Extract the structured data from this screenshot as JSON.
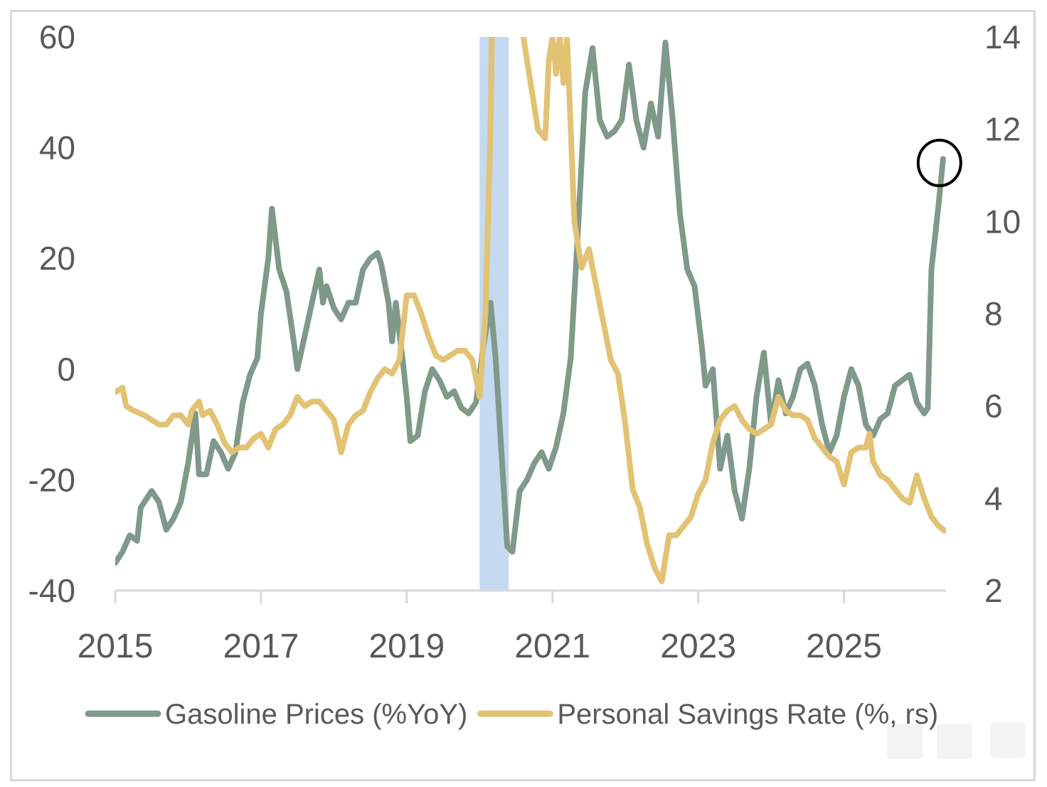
{
  "chart_data": {
    "type": "line",
    "title": "",
    "xlabel": "",
    "ylabel_left": "",
    "ylabel_right": "",
    "x_ticks": [
      "2015",
      "2017",
      "2019",
      "2021",
      "2023",
      "2025"
    ],
    "xlim": [
      2015,
      2026.4
    ],
    "ylim_left": [
      -40,
      60
    ],
    "yticks_left": [
      "60",
      "40",
      "20",
      "0",
      "-20",
      "-40"
    ],
    "ylim_right": [
      2,
      14
    ],
    "yticks_right": [
      "14",
      "12",
      "10",
      "8",
      "6",
      "4",
      "2"
    ],
    "grid": false,
    "legend_position": "bottom",
    "shaded_regions": [
      {
        "start": 2020.0,
        "end": 2020.4,
        "color": "#c5d9f1"
      }
    ],
    "annotations": [
      {
        "type": "circle",
        "x": 2026.33,
        "y": 37.5,
        "axis": "left"
      }
    ],
    "series": [
      {
        "name": "Gasoline Prices (%YoY)",
        "axis": "left",
        "color": "#7f998a",
        "points": [
          [
            2015.0,
            -35
          ],
          [
            2015.1,
            -33
          ],
          [
            2015.2,
            -30
          ],
          [
            2015.3,
            -31
          ],
          [
            2015.35,
            -25
          ],
          [
            2015.5,
            -22
          ],
          [
            2015.6,
            -24
          ],
          [
            2015.7,
            -29
          ],
          [
            2015.8,
            -27
          ],
          [
            2015.9,
            -24
          ],
          [
            2016.0,
            -17
          ],
          [
            2016.1,
            -8
          ],
          [
            2016.15,
            -19
          ],
          [
            2016.25,
            -19
          ],
          [
            2016.35,
            -13
          ],
          [
            2016.45,
            -15
          ],
          [
            2016.55,
            -18
          ],
          [
            2016.65,
            -15
          ],
          [
            2016.75,
            -6
          ],
          [
            2016.85,
            -1
          ],
          [
            2016.95,
            2
          ],
          [
            2017.0,
            10
          ],
          [
            2017.1,
            20
          ],
          [
            2017.15,
            29
          ],
          [
            2017.25,
            18
          ],
          [
            2017.35,
            14
          ],
          [
            2017.45,
            5
          ],
          [
            2017.5,
            0
          ],
          [
            2017.6,
            6
          ],
          [
            2017.7,
            12
          ],
          [
            2017.8,
            18
          ],
          [
            2017.85,
            12
          ],
          [
            2017.9,
            15
          ],
          [
            2018.0,
            11
          ],
          [
            2018.1,
            9
          ],
          [
            2018.2,
            12
          ],
          [
            2018.3,
            12
          ],
          [
            2018.4,
            18
          ],
          [
            2018.5,
            20
          ],
          [
            2018.6,
            21
          ],
          [
            2018.65,
            19
          ],
          [
            2018.75,
            12
          ],
          [
            2018.8,
            5
          ],
          [
            2018.85,
            12
          ],
          [
            2018.95,
            1
          ],
          [
            2019.0,
            -5
          ],
          [
            2019.05,
            -13
          ],
          [
            2019.15,
            -12
          ],
          [
            2019.25,
            -4
          ],
          [
            2019.35,
            0
          ],
          [
            2019.45,
            -2
          ],
          [
            2019.55,
            -5
          ],
          [
            2019.65,
            -4
          ],
          [
            2019.75,
            -7
          ],
          [
            2019.85,
            -8
          ],
          [
            2019.95,
            -6
          ],
          [
            2020.05,
            4
          ],
          [
            2020.15,
            12
          ],
          [
            2020.22,
            2
          ],
          [
            2020.3,
            -15
          ],
          [
            2020.38,
            -32
          ],
          [
            2020.45,
            -33
          ],
          [
            2020.55,
            -22
          ],
          [
            2020.65,
            -20
          ],
          [
            2020.75,
            -17
          ],
          [
            2020.85,
            -15
          ],
          [
            2020.95,
            -18
          ],
          [
            2021.05,
            -14
          ],
          [
            2021.15,
            -8
          ],
          [
            2021.25,
            2
          ],
          [
            2021.35,
            25
          ],
          [
            2021.45,
            50
          ],
          [
            2021.55,
            58
          ],
          [
            2021.65,
            45
          ],
          [
            2021.75,
            42
          ],
          [
            2021.85,
            43
          ],
          [
            2021.95,
            45
          ],
          [
            2022.05,
            55
          ],
          [
            2022.15,
            45
          ],
          [
            2022.25,
            40
          ],
          [
            2022.35,
            48
          ],
          [
            2022.45,
            42
          ],
          [
            2022.55,
            59
          ],
          [
            2022.65,
            45
          ],
          [
            2022.75,
            28
          ],
          [
            2022.85,
            18
          ],
          [
            2022.95,
            15
          ],
          [
            2023.05,
            4
          ],
          [
            2023.1,
            -3
          ],
          [
            2023.2,
            0
          ],
          [
            2023.3,
            -18
          ],
          [
            2023.4,
            -12
          ],
          [
            2023.5,
            -22
          ],
          [
            2023.6,
            -27
          ],
          [
            2023.7,
            -18
          ],
          [
            2023.8,
            -5
          ],
          [
            2023.9,
            3
          ],
          [
            2024.0,
            -10
          ],
          [
            2024.1,
            -2
          ],
          [
            2024.2,
            -8
          ],
          [
            2024.3,
            -5
          ],
          [
            2024.4,
            0
          ],
          [
            2024.5,
            1
          ],
          [
            2024.6,
            -3
          ],
          [
            2024.7,
            -10
          ],
          [
            2024.8,
            -15
          ],
          [
            2024.9,
            -12
          ],
          [
            2025.0,
            -5
          ],
          [
            2025.1,
            0
          ],
          [
            2025.2,
            -3
          ],
          [
            2025.3,
            -10
          ],
          [
            2025.4,
            -12
          ],
          [
            2025.5,
            -9
          ],
          [
            2025.6,
            -8
          ],
          [
            2025.7,
            -3
          ],
          [
            2025.8,
            -2
          ],
          [
            2025.9,
            -1
          ],
          [
            2026.0,
            -6
          ],
          [
            2026.1,
            -8
          ],
          [
            2026.15,
            -7
          ],
          [
            2026.2,
            18
          ],
          [
            2026.3,
            30
          ],
          [
            2026.36,
            38
          ]
        ]
      },
      {
        "name": "Personal Savings Rate (%, rs)",
        "axis": "right",
        "color": "#e2c273",
        "points": [
          [
            2015.0,
            6.3
          ],
          [
            2015.1,
            6.4
          ],
          [
            2015.15,
            6.0
          ],
          [
            2015.25,
            5.9
          ],
          [
            2015.4,
            5.8
          ],
          [
            2015.5,
            5.7
          ],
          [
            2015.6,
            5.6
          ],
          [
            2015.7,
            5.6
          ],
          [
            2015.8,
            5.8
          ],
          [
            2015.9,
            5.8
          ],
          [
            2016.0,
            5.6
          ],
          [
            2016.05,
            5.9
          ],
          [
            2016.15,
            6.1
          ],
          [
            2016.2,
            5.8
          ],
          [
            2016.3,
            5.9
          ],
          [
            2016.4,
            5.6
          ],
          [
            2016.5,
            5.2
          ],
          [
            2016.6,
            5.0
          ],
          [
            2016.7,
            5.1
          ],
          [
            2016.8,
            5.1
          ],
          [
            2016.9,
            5.3
          ],
          [
            2017.0,
            5.4
          ],
          [
            2017.1,
            5.1
          ],
          [
            2017.2,
            5.5
          ],
          [
            2017.3,
            5.6
          ],
          [
            2017.4,
            5.8
          ],
          [
            2017.5,
            6.2
          ],
          [
            2017.6,
            6.0
          ],
          [
            2017.7,
            6.1
          ],
          [
            2017.8,
            6.1
          ],
          [
            2017.9,
            5.9
          ],
          [
            2018.0,
            5.7
          ],
          [
            2018.1,
            5.0
          ],
          [
            2018.2,
            5.6
          ],
          [
            2018.3,
            5.8
          ],
          [
            2018.4,
            5.9
          ],
          [
            2018.5,
            6.3
          ],
          [
            2018.6,
            6.6
          ],
          [
            2018.7,
            6.8
          ],
          [
            2018.8,
            6.7
          ],
          [
            2018.9,
            7.0
          ],
          [
            2019.0,
            8.4
          ],
          [
            2019.1,
            8.4
          ],
          [
            2019.2,
            8.0
          ],
          [
            2019.3,
            7.5
          ],
          [
            2019.4,
            7.1
          ],
          [
            2019.5,
            7.0
          ],
          [
            2019.6,
            7.1
          ],
          [
            2019.7,
            7.2
          ],
          [
            2019.8,
            7.2
          ],
          [
            2019.9,
            7.0
          ],
          [
            2020.0,
            6.2
          ],
          [
            2020.08,
            8.0
          ],
          [
            2020.15,
            12.0
          ],
          [
            2020.22,
            20.0
          ],
          [
            2020.5,
            20.0
          ],
          [
            2020.6,
            14.0
          ],
          [
            2020.7,
            13.0
          ],
          [
            2020.8,
            12.0
          ],
          [
            2020.9,
            11.8
          ],
          [
            2020.95,
            13.5
          ],
          [
            2021.0,
            14.0
          ],
          [
            2021.05,
            13.2
          ],
          [
            2021.1,
            14.0
          ],
          [
            2021.15,
            13.0
          ],
          [
            2021.2,
            14.0
          ],
          [
            2021.25,
            12.0
          ],
          [
            2021.3,
            10.0
          ],
          [
            2021.4,
            9.0
          ],
          [
            2021.5,
            9.4
          ],
          [
            2021.6,
            8.6
          ],
          [
            2021.7,
            7.8
          ],
          [
            2021.8,
            7.0
          ],
          [
            2021.9,
            6.7
          ],
          [
            2022.0,
            5.6
          ],
          [
            2022.1,
            4.2
          ],
          [
            2022.2,
            3.8
          ],
          [
            2022.3,
            3.0
          ],
          [
            2022.4,
            2.5
          ],
          [
            2022.5,
            2.2
          ],
          [
            2022.6,
            3.2
          ],
          [
            2022.7,
            3.2
          ],
          [
            2022.8,
            3.4
          ],
          [
            2022.9,
            3.6
          ],
          [
            2023.0,
            4.1
          ],
          [
            2023.1,
            4.4
          ],
          [
            2023.2,
            5.2
          ],
          [
            2023.3,
            5.7
          ],
          [
            2023.4,
            5.9
          ],
          [
            2023.5,
            6.0
          ],
          [
            2023.6,
            5.7
          ],
          [
            2023.7,
            5.5
          ],
          [
            2023.8,
            5.4
          ],
          [
            2023.9,
            5.5
          ],
          [
            2024.0,
            5.6
          ],
          [
            2024.1,
            6.2
          ],
          [
            2024.2,
            5.9
          ],
          [
            2024.3,
            5.8
          ],
          [
            2024.4,
            5.8
          ],
          [
            2024.5,
            5.7
          ],
          [
            2024.6,
            5.3
          ],
          [
            2024.7,
            5.1
          ],
          [
            2024.8,
            4.9
          ],
          [
            2024.9,
            4.8
          ],
          [
            2025.0,
            4.3
          ],
          [
            2025.1,
            5.0
          ],
          [
            2025.2,
            5.1
          ],
          [
            2025.3,
            5.1
          ],
          [
            2025.35,
            5.4
          ],
          [
            2025.4,
            4.8
          ],
          [
            2025.5,
            4.5
          ],
          [
            2025.6,
            4.4
          ],
          [
            2025.7,
            4.2
          ],
          [
            2025.8,
            4.0
          ],
          [
            2025.9,
            3.9
          ],
          [
            2026.0,
            4.5
          ],
          [
            2026.1,
            4.0
          ],
          [
            2026.2,
            3.6
          ],
          [
            2026.3,
            3.4
          ],
          [
            2026.38,
            3.3
          ]
        ]
      }
    ]
  }
}
